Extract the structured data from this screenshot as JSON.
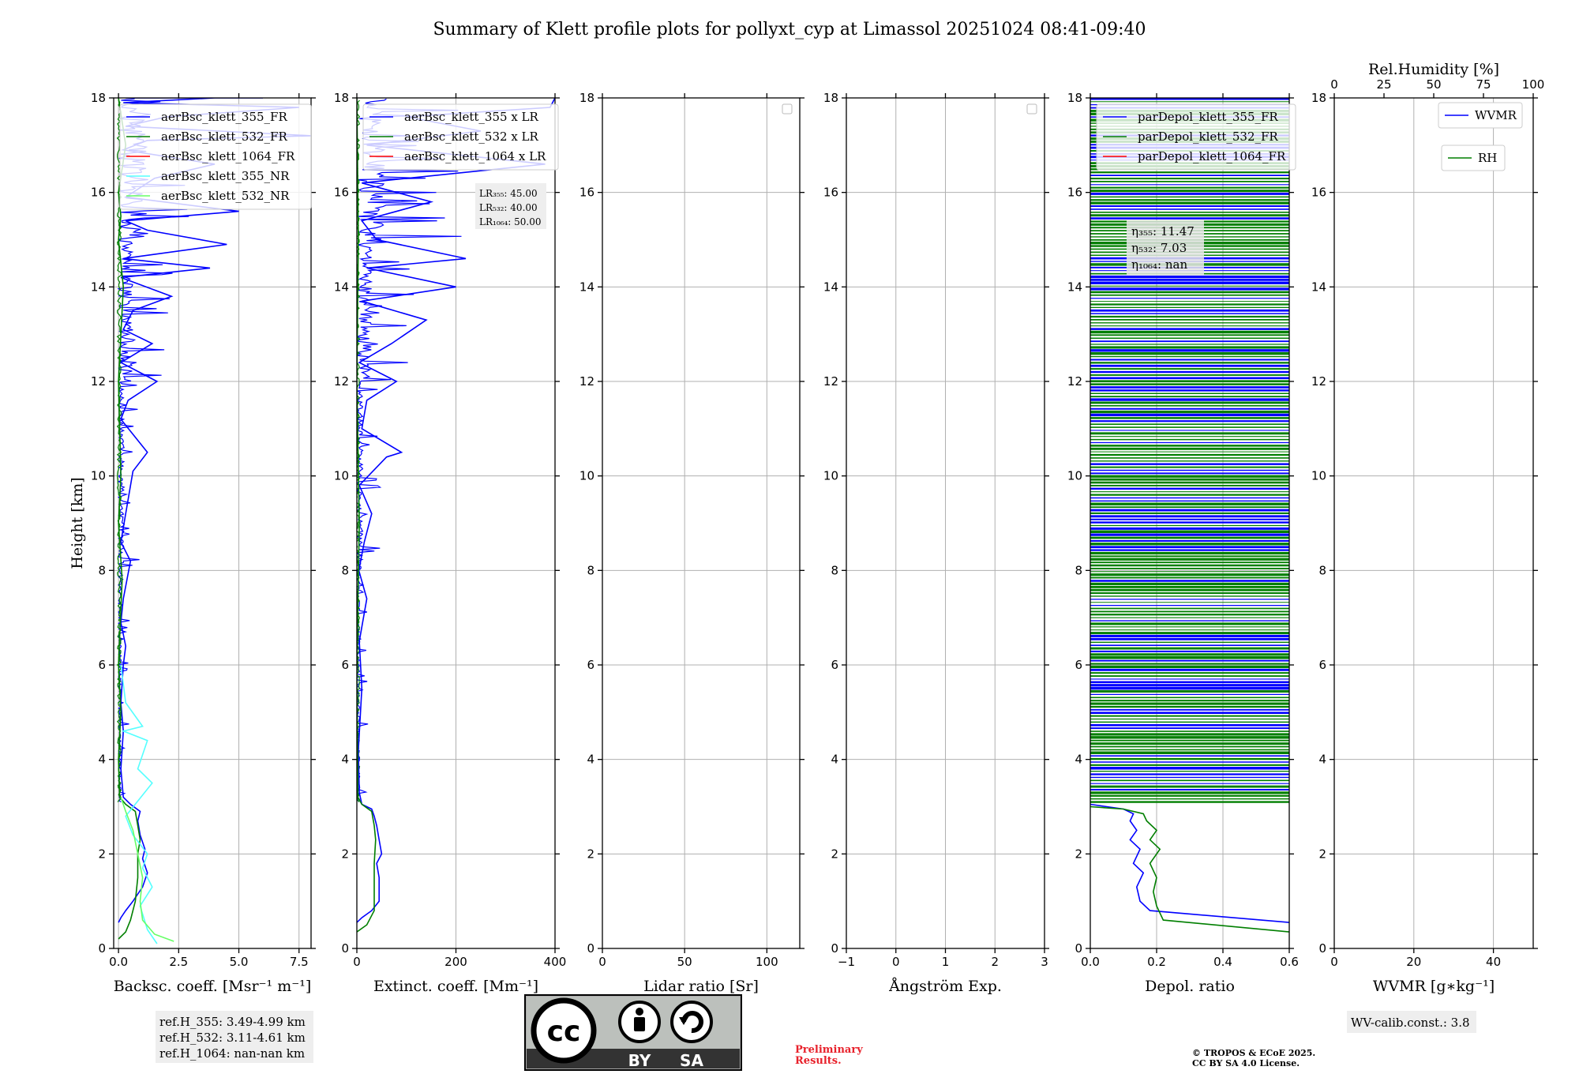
{
  "title": "Summary of Klett profile plots for pollyxt_cyp at Limassol 20251024 08:41-09:40",
  "colors": {
    "c355": "#0000ff",
    "c532": "#007f00",
    "c1064": "#ff0000",
    "c355nr": "#55ffff",
    "c532nr": "#66ff66",
    "grid": "#b0b0b0"
  },
  "chart_data": [
    {
      "type": "line",
      "id": "bsc",
      "xlabel": "Backsc. coeff. [Msr⁻¹ m⁻¹]",
      "ylabel": "Height [km]",
      "xlim": [
        -0.2,
        8.0
      ],
      "ylim": [
        0,
        18
      ],
      "xticks": [
        0,
        2.5,
        5.0,
        7.5
      ],
      "xticklabels": [
        "0.0",
        "2.5",
        "5.0",
        "7.5"
      ],
      "yticks": [
        0,
        2,
        4,
        6,
        8,
        10,
        12,
        14,
        16,
        18
      ],
      "legend": [
        "aerBsc_klett_355_FR",
        "aerBsc_klett_532_FR",
        "aerBsc_klett_1064_FR",
        "aerBsc_klett_355_NR",
        "aerBsc_klett_532_NR"
      ],
      "legend_position": "top-left",
      "series": [
        {
          "name": "aerBsc_klett_355_FR",
          "color": "#0000ff",
          "x": [
            0.0,
            0.1,
            0.3,
            0.6,
            1.0,
            1.2,
            1.0,
            1.1,
            0.9,
            0.8,
            0.9,
            0.5,
            0.2,
            0.1,
            0.2,
            0.1,
            0.2,
            0.3,
            0.1,
            0.2,
            0.5,
            0.1,
            0.3,
            0.6,
            1.2,
            0.1,
            0.4,
            1.6,
            0.1,
            1.4,
            0.2,
            0.6,
            2.2,
            0.1,
            3.8,
            0.2,
            4.5,
            1.2,
            0.3,
            5.0,
            0.3,
            1.5,
            4.0,
            0.2,
            1.2,
            8.0,
            0.3,
            2.0,
            7.5,
            0.2,
            4.0,
            0.3,
            6.0
          ],
          "y": [
            0.55,
            0.65,
            0.8,
            1.0,
            1.3,
            1.6,
            1.9,
            2.1,
            2.4,
            2.7,
            2.9,
            3.05,
            3.2,
            3.8,
            4.6,
            5.2,
            6.0,
            6.4,
            6.9,
            7.4,
            8.2,
            8.6,
            9.2,
            10.1,
            10.5,
            11.2,
            11.6,
            12.0,
            12.4,
            12.8,
            13.1,
            13.5,
            13.8,
            14.2,
            14.4,
            14.6,
            14.9,
            15.2,
            15.4,
            15.6,
            15.9,
            16.3,
            16.6,
            16.9,
            17.1,
            17.2,
            17.4,
            17.6,
            17.8,
            17.9,
            18.0,
            18.0,
            18.0
          ]
        },
        {
          "name": "aerBsc_klett_532_FR",
          "color": "#007f00",
          "x": [
            0.0,
            0.3,
            0.5,
            0.7,
            0.8,
            0.8,
            0.9,
            0.8,
            0.7,
            0.3,
            0.05,
            0.0,
            0.1,
            0.0,
            0.15,
            0.0,
            0.1,
            0.0,
            0.2,
            0.0,
            0.1,
            0.0,
            0.3,
            0.0
          ],
          "y": [
            0.2,
            0.35,
            0.6,
            1.0,
            1.5,
            2.0,
            2.3,
            2.6,
            2.9,
            3.05,
            3.2,
            4.0,
            5.0,
            6.0,
            7.8,
            9.0,
            10.0,
            12.0,
            14.0,
            15.0,
            15.5,
            16.0,
            17.0,
            18.0
          ]
        },
        {
          "name": "aerBsc_klett_355_NR",
          "color": "#55ffff",
          "x": [
            1.6,
            1.2,
            0.9,
            1.4,
            1.0,
            1.2,
            0.6,
            0.3,
            1.4,
            0.8,
            1.2,
            0.2,
            1.0,
            0.3,
            0.1
          ],
          "y": [
            0.1,
            0.4,
            0.9,
            1.3,
            1.7,
            2.0,
            2.4,
            2.8,
            3.5,
            3.8,
            4.4,
            4.6,
            4.7,
            5.2,
            6.0
          ]
        },
        {
          "name": "aerBsc_klett_532_NR",
          "color": "#66ff66",
          "x": [
            2.3,
            1.5,
            1.0,
            0.9,
            1.0,
            0.8,
            0.6,
            0.3,
            0.1
          ],
          "y": [
            0.15,
            0.3,
            0.6,
            1.0,
            1.5,
            2.0,
            2.5,
            2.9,
            3.2
          ]
        }
      ]
    },
    {
      "type": "line",
      "id": "ext",
      "xlabel": "Extinct. coeff. [Mm⁻¹]",
      "ylabel": "",
      "xlim": [
        0,
        400
      ],
      "ylim": [
        0,
        18
      ],
      "xticks": [
        0,
        200,
        400
      ],
      "xticklabels": [
        "0",
        "200",
        "400"
      ],
      "yticks": [
        0,
        2,
        4,
        6,
        8,
        10,
        12,
        14,
        16,
        18
      ],
      "legend": [
        "aerBsc_klett_355 x LR",
        "aerBsc_klett_532 x LR",
        "aerBsc_klett_1064 x LR"
      ],
      "legend_position": "top-left",
      "annotation_lines": [
        "LR₃₅₅: 45.00",
        "LR₅₃₂: 40.00",
        "LR₁₀₆₄: 50.00"
      ],
      "series": [
        {
          "name": "aerBsc_klett_355 x LR",
          "color": "#0000ff",
          "x": [
            0,
            10,
            30,
            45,
            45,
            40,
            50,
            45,
            40,
            35,
            30,
            10,
            5,
            3,
            10,
            5,
            20,
            4,
            15,
            30,
            5,
            60,
            90,
            10,
            20,
            80,
            5,
            70,
            140,
            10,
            200,
            20,
            220,
            40,
            10,
            150,
            10,
            380,
            20,
            250,
            100,
            390,
            400
          ],
          "y": [
            0.55,
            0.65,
            0.8,
            1.0,
            1.5,
            1.8,
            2.0,
            2.3,
            2.6,
            2.8,
            2.95,
            3.05,
            3.3,
            4.2,
            5.5,
            6.5,
            7.4,
            8.0,
            8.6,
            9.2,
            9.8,
            10.4,
            10.5,
            11.0,
            11.6,
            12.0,
            12.4,
            12.8,
            13.3,
            13.7,
            14.0,
            14.4,
            14.6,
            15.0,
            15.4,
            15.8,
            16.2,
            16.6,
            17.0,
            17.3,
            17.6,
            17.8,
            18.0
          ]
        },
        {
          "name": "aerBsc_klett_532 x LR",
          "color": "#007f00",
          "x": [
            0,
            20,
            35,
            35,
            35,
            38,
            35,
            30,
            10,
            2,
            0,
            5,
            0,
            3,
            0
          ],
          "y": [
            0.35,
            0.5,
            0.8,
            1.2,
            1.8,
            2.3,
            2.6,
            2.9,
            3.05,
            3.2,
            6.0,
            9.0,
            12.0,
            15.0,
            18.0
          ]
        }
      ]
    },
    {
      "type": "line",
      "id": "lr",
      "xlabel": "Lidar ratio [Sr]",
      "ylabel": "",
      "xlim": [
        0,
        120
      ],
      "ylim": [
        0,
        18
      ],
      "xticks": [
        0,
        50,
        100
      ],
      "xticklabels": [
        "0",
        "50",
        "100"
      ],
      "yticks": [
        0,
        2,
        4,
        6,
        8,
        10,
        12,
        14,
        16,
        18
      ],
      "legend": [],
      "series": []
    },
    {
      "type": "line",
      "id": "ang",
      "xlabel": "Ångström Exp.",
      "ylabel": "",
      "xlim": [
        -1,
        3
      ],
      "ylim": [
        0,
        18
      ],
      "xticks": [
        -1,
        0,
        1,
        2,
        3
      ],
      "xticklabels": [
        "−1",
        "0",
        "1",
        "2",
        "3"
      ],
      "yticks": [
        0,
        2,
        4,
        6,
        8,
        10,
        12,
        14,
        16,
        18
      ],
      "legend": [],
      "series": []
    },
    {
      "type": "line",
      "id": "dep",
      "xlabel": "Depol. ratio",
      "ylabel": "",
      "xlim": [
        0,
        0.6
      ],
      "ylim": [
        0,
        18
      ],
      "xticks": [
        0,
        0.2,
        0.4,
        0.6
      ],
      "xticklabels": [
        "0.0",
        "0.2",
        "0.4",
        "0.6"
      ],
      "yticks": [
        0,
        2,
        4,
        6,
        8,
        10,
        12,
        14,
        16,
        18
      ],
      "legend": [
        "parDepol_klett_355_FR",
        "parDepol_klett_532_FR",
        "parDepol_klett_1064_FR"
      ],
      "legend_position": "top-left",
      "annotation_lines": [
        "η₃₅₅: 11.47",
        "η₅₃₂: 7.03",
        "η₁₀₆₄: nan"
      ],
      "series": [
        {
          "name": "parDepol_klett_355_FR",
          "color": "#0000ff",
          "x": [
            0.6,
            0.18,
            0.15,
            0.14,
            0.16,
            0.13,
            0.15,
            0.12,
            0.14,
            0.12,
            0.13,
            0.1,
            0.05,
            0.0
          ],
          "y": [
            0.55,
            0.8,
            1.0,
            1.3,
            1.6,
            1.8,
            2.1,
            2.3,
            2.5,
            2.7,
            2.85,
            2.95,
            3.0,
            3.05
          ]
        },
        {
          "name": "parDepol_klett_532_FR",
          "color": "#007f00",
          "x": [
            0.6,
            0.22,
            0.2,
            0.19,
            0.2,
            0.18,
            0.21,
            0.18,
            0.2,
            0.17,
            0.16,
            0.1,
            0.0
          ],
          "y": [
            0.35,
            0.6,
            0.9,
            1.2,
            1.5,
            1.8,
            2.1,
            2.3,
            2.5,
            2.7,
            2.85,
            2.95,
            3.0
          ]
        }
      ]
    },
    {
      "type": "line",
      "id": "wv",
      "xlabel": "WVMR [g∗kg⁻¹]",
      "ylabel": "",
      "xlim": [
        0,
        50
      ],
      "ylim": [
        0,
        18
      ],
      "xticks": [
        0,
        20,
        40
      ],
      "xticklabels": [
        "0",
        "20",
        "40"
      ],
      "yticks": [
        0,
        2,
        4,
        6,
        8,
        10,
        12,
        14,
        16,
        18
      ],
      "top_xlabel": "Rel.Humidity [%]",
      "top_xticks": [
        0,
        25,
        50,
        75,
        100
      ],
      "legend": [
        "WVMR",
        "RH"
      ],
      "legend_position": "top-right",
      "series": []
    }
  ],
  "refH": [
    "ref.H_355: 3.49-4.99 km",
    "ref.H_532: 3.11-4.61 km",
    "ref.H_1064: nan-nan km"
  ],
  "license_logo": {
    "cc": "cc",
    "by": "BY",
    "sa": "SA"
  },
  "preliminary": [
    "Preliminary",
    "Results."
  ],
  "copyright": [
    "© TROPOS & ECoE 2025.",
    "CC BY SA 4.0 License."
  ],
  "wv_calib": "WV-calib.const.: 3.8"
}
